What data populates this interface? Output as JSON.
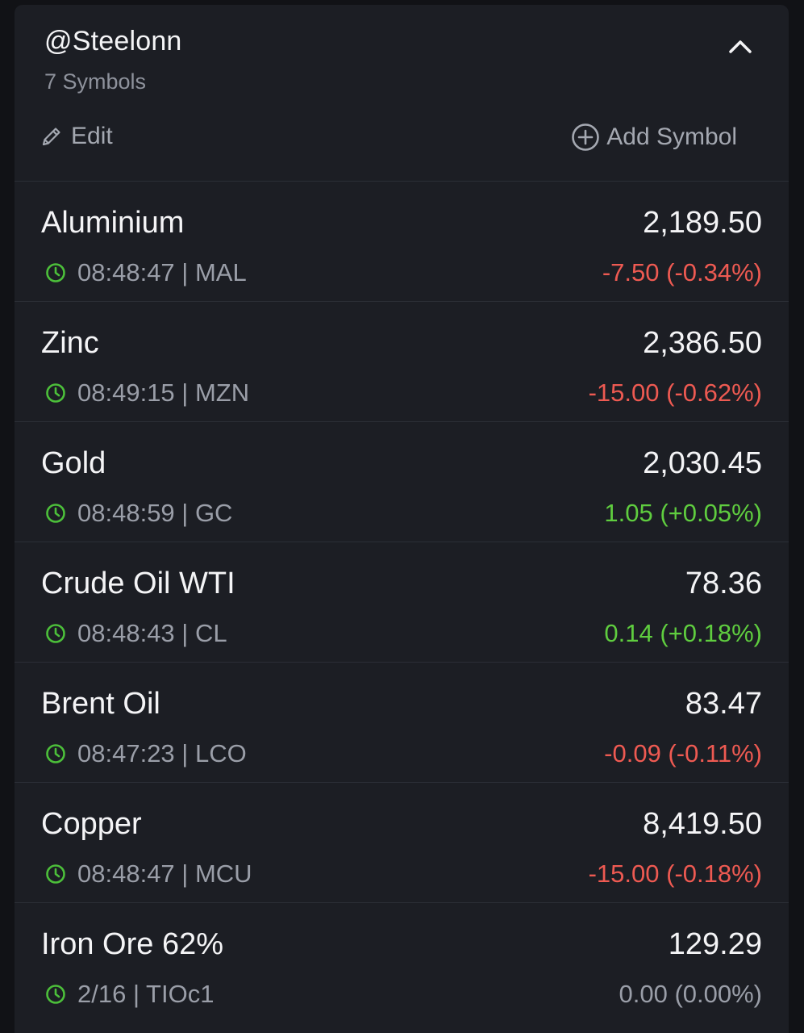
{
  "header": {
    "title": "@Steelonn",
    "count": "7 Symbols",
    "edit_label": "Edit",
    "add_label": "Add Symbol"
  },
  "colors": {
    "negative": "#ee5a52",
    "positive": "#5fcd3f",
    "neutral": "#9a9ea8",
    "clock": "#4cbf3a"
  },
  "icons": {
    "collapse": "chevron-up-icon",
    "edit": "pencil-icon",
    "add": "plus-circle-icon",
    "time": "clock-icon"
  },
  "symbols": [
    {
      "name": "Aluminium",
      "price": "2,189.50",
      "meta": "08:48:47 | MAL",
      "change": "-7.50 (-0.34%)",
      "direction": "neg"
    },
    {
      "name": "Zinc",
      "price": "2,386.50",
      "meta": "08:49:15 | MZN",
      "change": "-15.00 (-0.62%)",
      "direction": "neg"
    },
    {
      "name": "Gold",
      "price": "2,030.45",
      "meta": "08:48:59 | GC",
      "change": "1.05 (+0.05%)",
      "direction": "pos"
    },
    {
      "name": "Crude Oil WTI",
      "price": "78.36",
      "meta": "08:48:43 | CL",
      "change": "0.14 (+0.18%)",
      "direction": "pos"
    },
    {
      "name": "Brent Oil",
      "price": "83.47",
      "meta": "08:47:23 | LCO",
      "change": "-0.09 (-0.11%)",
      "direction": "neg"
    },
    {
      "name": "Copper",
      "price": "8,419.50",
      "meta": "08:48:47 | MCU",
      "change": "-15.00 (-0.18%)",
      "direction": "neg"
    },
    {
      "name": "Iron Ore 62%",
      "price": "129.29",
      "meta": "2/16 | TIOc1",
      "change": "0.00 (0.00%)",
      "direction": "flat"
    }
  ]
}
